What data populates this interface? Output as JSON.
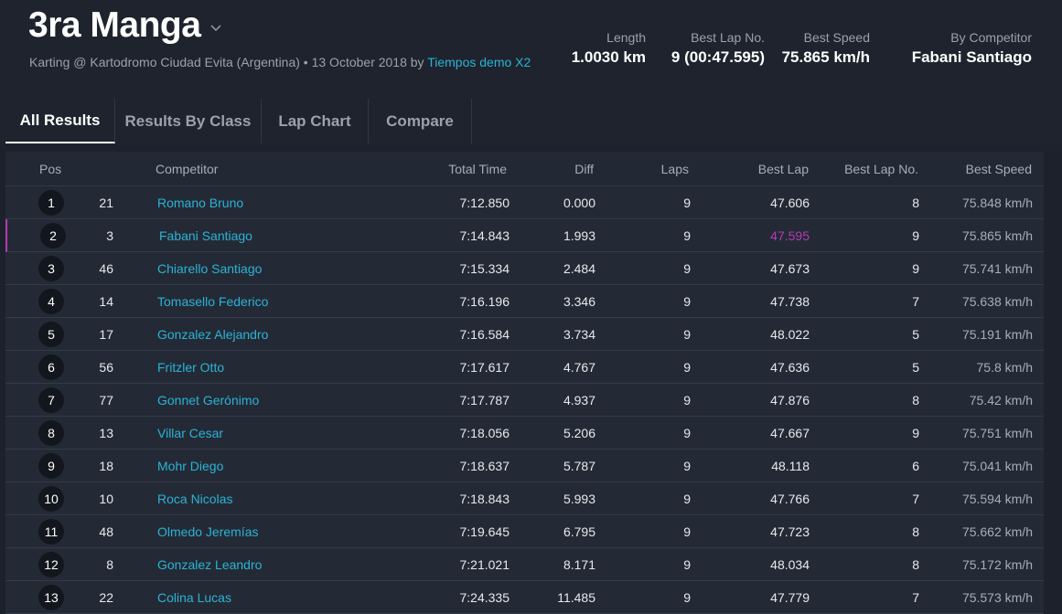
{
  "event": {
    "title": "3ra Manga",
    "subtitle_prefix": "Karting @ Kartodromo Ciudad Evita (Argentina) • 13 October 2018 by",
    "organizer": "Tiempos demo X2"
  },
  "stats": [
    {
      "label": "Length",
      "value": "1.0030 km"
    },
    {
      "label": "Best Lap No.",
      "value": "9 (00:47.595)"
    },
    {
      "label": "Best Speed",
      "value": "75.865 km/h"
    },
    {
      "label": "By Competitor",
      "value": "Fabani Santiago"
    }
  ],
  "tabs": [
    {
      "label": "All Results",
      "active": true
    },
    {
      "label": "Results By Class",
      "active": false
    },
    {
      "label": "Lap Chart",
      "active": false
    },
    {
      "label": "Compare",
      "active": false
    }
  ],
  "columns": [
    "Pos",
    "Competitor",
    "Total Time",
    "Diff",
    "Laps",
    "Best Lap",
    "Best Lap No.",
    "Best Speed"
  ],
  "rows": [
    {
      "pos": "1",
      "num": "21",
      "name": "Romano Bruno",
      "total": "7:12.850",
      "diff": "0.000",
      "laps": "9",
      "best_lap": "47.606",
      "best_lap_no": "8",
      "best_speed": "75.848 km/h"
    },
    {
      "pos": "2",
      "num": "3",
      "name": "Fabani Santiago",
      "total": "7:14.843",
      "diff": "1.993",
      "laps": "9",
      "best_lap": "47.595",
      "best_lap_no": "9",
      "best_speed": "75.865 km/h",
      "highlight": true
    },
    {
      "pos": "3",
      "num": "46",
      "name": "Chiarello Santiago",
      "total": "7:15.334",
      "diff": "2.484",
      "laps": "9",
      "best_lap": "47.673",
      "best_lap_no": "9",
      "best_speed": "75.741 km/h"
    },
    {
      "pos": "4",
      "num": "14",
      "name": "Tomasello Federico",
      "total": "7:16.196",
      "diff": "3.346",
      "laps": "9",
      "best_lap": "47.738",
      "best_lap_no": "7",
      "best_speed": "75.638 km/h"
    },
    {
      "pos": "5",
      "num": "17",
      "name": "Gonzalez Alejandro",
      "total": "7:16.584",
      "diff": "3.734",
      "laps": "9",
      "best_lap": "48.022",
      "best_lap_no": "5",
      "best_speed": "75.191 km/h"
    },
    {
      "pos": "6",
      "num": "56",
      "name": "Fritzler Otto",
      "total": "7:17.617",
      "diff": "4.767",
      "laps": "9",
      "best_lap": "47.636",
      "best_lap_no": "5",
      "best_speed": "75.8 km/h"
    },
    {
      "pos": "7",
      "num": "77",
      "name": "Gonnet Gerónimo",
      "total": "7:17.787",
      "diff": "4.937",
      "laps": "9",
      "best_lap": "47.876",
      "best_lap_no": "8",
      "best_speed": "75.42 km/h"
    },
    {
      "pos": "8",
      "num": "13",
      "name": "Villar Cesar",
      "total": "7:18.056",
      "diff": "5.206",
      "laps": "9",
      "best_lap": "47.667",
      "best_lap_no": "9",
      "best_speed": "75.751 km/h"
    },
    {
      "pos": "9",
      "num": "18",
      "name": "Mohr Diego",
      "total": "7:18.637",
      "diff": "5.787",
      "laps": "9",
      "best_lap": "48.118",
      "best_lap_no": "6",
      "best_speed": "75.041 km/h"
    },
    {
      "pos": "10",
      "num": "10",
      "name": "Roca Nicolas",
      "total": "7:18.843",
      "diff": "5.993",
      "laps": "9",
      "best_lap": "47.766",
      "best_lap_no": "7",
      "best_speed": "75.594 km/h"
    },
    {
      "pos": "11",
      "num": "48",
      "name": "Olmedo Jeremías",
      "total": "7:19.645",
      "diff": "6.795",
      "laps": "9",
      "best_lap": "47.723",
      "best_lap_no": "8",
      "best_speed": "75.662 km/h"
    },
    {
      "pos": "12",
      "num": "8",
      "name": "Gonzalez Leandro",
      "total": "7:21.021",
      "diff": "8.171",
      "laps": "9",
      "best_lap": "48.034",
      "best_lap_no": "8",
      "best_speed": "75.172 km/h"
    },
    {
      "pos": "13",
      "num": "22",
      "name": "Colina Lucas",
      "total": "7:24.335",
      "diff": "11.485",
      "laps": "9",
      "best_lap": "47.779",
      "best_lap_no": "7",
      "best_speed": "75.573 km/h"
    }
  ],
  "colors": {
    "background": "#1c212b",
    "accent": "#2ab3d6",
    "best_lap_highlight": "#b23bb8"
  },
  "icons": {
    "title_dropdown": "chevron-down-icon"
  }
}
